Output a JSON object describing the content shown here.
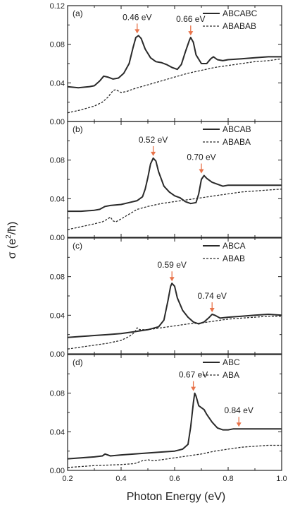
{
  "chart_data": [
    {
      "type": "line",
      "panel_label": "(a)",
      "xlim": [
        0.2,
        1.0
      ],
      "ylim": [
        0.0,
        0.12
      ],
      "yticks": [
        "0.00",
        "0.04",
        "0.08",
        "0.12"
      ],
      "series": [
        {
          "name": "ABCABC",
          "style": "solid",
          "points": [
            [
              0.2,
              0.036
            ],
            [
              0.24,
              0.035
            ],
            [
              0.28,
              0.036
            ],
            [
              0.3,
              0.037
            ],
            [
              0.32,
              0.042
            ],
            [
              0.335,
              0.047
            ],
            [
              0.35,
              0.046
            ],
            [
              0.37,
              0.044
            ],
            [
              0.39,
              0.045
            ],
            [
              0.41,
              0.05
            ],
            [
              0.43,
              0.06
            ],
            [
              0.445,
              0.077
            ],
            [
              0.455,
              0.087
            ],
            [
              0.465,
              0.089
            ],
            [
              0.475,
              0.086
            ],
            [
              0.49,
              0.075
            ],
            [
              0.51,
              0.066
            ],
            [
              0.53,
              0.062
            ],
            [
              0.55,
              0.061
            ],
            [
              0.57,
              0.059
            ],
            [
              0.59,
              0.056
            ],
            [
              0.61,
              0.054
            ],
            [
              0.625,
              0.059
            ],
            [
              0.64,
              0.072
            ],
            [
              0.655,
              0.084
            ],
            [
              0.66,
              0.087
            ],
            [
              0.67,
              0.082
            ],
            [
              0.68,
              0.069
            ],
            [
              0.7,
              0.06
            ],
            [
              0.72,
              0.06
            ],
            [
              0.735,
              0.065
            ],
            [
              0.745,
              0.067
            ],
            [
              0.76,
              0.064
            ],
            [
              0.78,
              0.063
            ],
            [
              0.8,
              0.064
            ],
            [
              0.85,
              0.065
            ],
            [
              0.9,
              0.066
            ],
            [
              0.95,
              0.067
            ],
            [
              1.0,
              0.067
            ]
          ]
        },
        {
          "name": "ABABAB",
          "style": "dashed",
          "points": [
            [
              0.2,
              0.009
            ],
            [
              0.25,
              0.012
            ],
            [
              0.3,
              0.016
            ],
            [
              0.33,
              0.02
            ],
            [
              0.35,
              0.025
            ],
            [
              0.37,
              0.032
            ],
            [
              0.38,
              0.033
            ],
            [
              0.4,
              0.03
            ],
            [
              0.42,
              0.031
            ],
            [
              0.45,
              0.034
            ],
            [
              0.5,
              0.038
            ],
            [
              0.55,
              0.042
            ],
            [
              0.6,
              0.046
            ],
            [
              0.65,
              0.05
            ],
            [
              0.7,
              0.053
            ],
            [
              0.75,
              0.056
            ],
            [
              0.8,
              0.058
            ],
            [
              0.85,
              0.06
            ],
            [
              0.9,
              0.062
            ],
            [
              0.95,
              0.063
            ],
            [
              1.0,
              0.065
            ]
          ]
        }
      ],
      "annotations": [
        {
          "x": 0.46,
          "y": 0.089,
          "label": "0.46 eV"
        },
        {
          "x": 0.66,
          "y": 0.087,
          "label": "0.66 eV"
        }
      ]
    },
    {
      "type": "line",
      "panel_label": "(b)",
      "xlim": [
        0.2,
        1.0
      ],
      "ylim": [
        0.0,
        0.12
      ],
      "yticks": [
        "0.00",
        "0.04",
        "0.08"
      ],
      "series": [
        {
          "name": "ABCAB",
          "style": "solid",
          "points": [
            [
              0.2,
              0.027
            ],
            [
              0.25,
              0.027
            ],
            [
              0.3,
              0.028
            ],
            [
              0.32,
              0.029
            ],
            [
              0.34,
              0.032
            ],
            [
              0.36,
              0.033
            ],
            [
              0.4,
              0.034
            ],
            [
              0.43,
              0.036
            ],
            [
              0.46,
              0.038
            ],
            [
              0.48,
              0.042
            ],
            [
              0.49,
              0.05
            ],
            [
              0.5,
              0.062
            ],
            [
              0.51,
              0.076
            ],
            [
              0.52,
              0.082
            ],
            [
              0.53,
              0.079
            ],
            [
              0.54,
              0.068
            ],
            [
              0.56,
              0.053
            ],
            [
              0.58,
              0.047
            ],
            [
              0.6,
              0.043
            ],
            [
              0.62,
              0.041
            ],
            [
              0.64,
              0.037
            ],
            [
              0.66,
              0.035
            ],
            [
              0.68,
              0.036
            ],
            [
              0.69,
              0.045
            ],
            [
              0.7,
              0.06
            ],
            [
              0.71,
              0.064
            ],
            [
              0.72,
              0.061
            ],
            [
              0.74,
              0.057
            ],
            [
              0.76,
              0.055
            ],
            [
              0.78,
              0.053
            ],
            [
              0.8,
              0.054
            ],
            [
              0.85,
              0.054
            ],
            [
              0.9,
              0.054
            ],
            [
              0.95,
              0.054
            ],
            [
              1.0,
              0.054
            ]
          ]
        },
        {
          "name": "ABABA",
          "style": "dashed",
          "points": [
            [
              0.2,
              0.008
            ],
            [
              0.25,
              0.011
            ],
            [
              0.3,
              0.014
            ],
            [
              0.33,
              0.016
            ],
            [
              0.35,
              0.019
            ],
            [
              0.36,
              0.021
            ],
            [
              0.37,
              0.017
            ],
            [
              0.38,
              0.016
            ],
            [
              0.4,
              0.019
            ],
            [
              0.43,
              0.024
            ],
            [
              0.46,
              0.029
            ],
            [
              0.5,
              0.032
            ],
            [
              0.55,
              0.035
            ],
            [
              0.6,
              0.037
            ],
            [
              0.65,
              0.039
            ],
            [
              0.7,
              0.041
            ],
            [
              0.75,
              0.043
            ],
            [
              0.8,
              0.045
            ],
            [
              0.85,
              0.047
            ],
            [
              0.9,
              0.048
            ],
            [
              0.95,
              0.049
            ],
            [
              1.0,
              0.05
            ]
          ]
        }
      ],
      "annotations": [
        {
          "x": 0.52,
          "y": 0.082,
          "label": "0.52 eV"
        },
        {
          "x": 0.7,
          "y": 0.064,
          "label": "0.70 eV"
        }
      ]
    },
    {
      "type": "line",
      "panel_label": "(c)",
      "xlim": [
        0.2,
        1.0
      ],
      "ylim": [
        0.0,
        0.12
      ],
      "yticks": [
        "0.00",
        "0.04",
        "0.08"
      ],
      "series": [
        {
          "name": "ABCA",
          "style": "solid",
          "points": [
            [
              0.2,
              0.017
            ],
            [
              0.25,
              0.018
            ],
            [
              0.3,
              0.019
            ],
            [
              0.35,
              0.02
            ],
            [
              0.4,
              0.021
            ],
            [
              0.45,
              0.023
            ],
            [
              0.5,
              0.025
            ],
            [
              0.54,
              0.028
            ],
            [
              0.56,
              0.035
            ],
            [
              0.575,
              0.055
            ],
            [
              0.585,
              0.07
            ],
            [
              0.59,
              0.073
            ],
            [
              0.6,
              0.07
            ],
            [
              0.61,
              0.058
            ],
            [
              0.63,
              0.045
            ],
            [
              0.65,
              0.038
            ],
            [
              0.67,
              0.033
            ],
            [
              0.69,
              0.031
            ],
            [
              0.71,
              0.033
            ],
            [
              0.73,
              0.038
            ],
            [
              0.74,
              0.041
            ],
            [
              0.75,
              0.04
            ],
            [
              0.77,
              0.037
            ],
            [
              0.8,
              0.038
            ],
            [
              0.85,
              0.039
            ],
            [
              0.9,
              0.04
            ],
            [
              0.95,
              0.041
            ],
            [
              1.0,
              0.04
            ]
          ]
        },
        {
          "name": "ABAB",
          "style": "dashed",
          "points": [
            [
              0.2,
              0.005
            ],
            [
              0.25,
              0.007
            ],
            [
              0.3,
              0.009
            ],
            [
              0.35,
              0.011
            ],
            [
              0.4,
              0.014
            ],
            [
              0.43,
              0.018
            ],
            [
              0.45,
              0.022
            ],
            [
              0.46,
              0.027
            ],
            [
              0.47,
              0.025
            ],
            [
              0.5,
              0.025
            ],
            [
              0.55,
              0.027
            ],
            [
              0.6,
              0.029
            ],
            [
              0.65,
              0.031
            ],
            [
              0.7,
              0.032
            ],
            [
              0.75,
              0.034
            ],
            [
              0.8,
              0.036
            ],
            [
              0.85,
              0.037
            ],
            [
              0.9,
              0.038
            ],
            [
              0.95,
              0.039
            ],
            [
              1.0,
              0.039
            ]
          ]
        }
      ],
      "annotations": [
        {
          "x": 0.59,
          "y": 0.073,
          "label": "0.59 eV"
        },
        {
          "x": 0.74,
          "y": 0.041,
          "label": "0.74 eV"
        }
      ]
    },
    {
      "type": "line",
      "panel_label": "(d)",
      "xlim": [
        0.2,
        1.0
      ],
      "ylim": [
        0.0,
        0.12
      ],
      "xticks": [
        "0.2",
        "0.4",
        "0.6",
        "0.8",
        "1.0"
      ],
      "yticks": [
        "0.00",
        "0.04",
        "0.08"
      ],
      "series": [
        {
          "name": "ABC",
          "style": "solid",
          "points": [
            [
              0.2,
              0.012
            ],
            [
              0.25,
              0.013
            ],
            [
              0.3,
              0.014
            ],
            [
              0.33,
              0.015
            ],
            [
              0.34,
              0.017
            ],
            [
              0.36,
              0.015
            ],
            [
              0.4,
              0.016
            ],
            [
              0.45,
              0.017
            ],
            [
              0.5,
              0.018
            ],
            [
              0.55,
              0.019
            ],
            [
              0.6,
              0.02
            ],
            [
              0.63,
              0.022
            ],
            [
              0.65,
              0.027
            ],
            [
              0.66,
              0.045
            ],
            [
              0.67,
              0.07
            ],
            [
              0.675,
              0.08
            ],
            [
              0.68,
              0.077
            ],
            [
              0.69,
              0.067
            ],
            [
              0.71,
              0.063
            ],
            [
              0.72,
              0.058
            ],
            [
              0.74,
              0.05
            ],
            [
              0.76,
              0.044
            ],
            [
              0.78,
              0.042
            ],
            [
              0.8,
              0.042
            ],
            [
              0.82,
              0.043
            ],
            [
              0.84,
              0.043
            ],
            [
              0.9,
              0.043
            ],
            [
              0.95,
              0.043
            ],
            [
              1.0,
              0.043
            ]
          ]
        },
        {
          "name": "ABA",
          "style": "dashed",
          "points": [
            [
              0.2,
              0.003
            ],
            [
              0.3,
              0.005
            ],
            [
              0.4,
              0.006
            ],
            [
              0.45,
              0.007
            ],
            [
              0.48,
              0.01
            ],
            [
              0.5,
              0.011
            ],
            [
              0.52,
              0.01
            ],
            [
              0.55,
              0.011
            ],
            [
              0.6,
              0.013
            ],
            [
              0.65,
              0.015
            ],
            [
              0.7,
              0.017
            ],
            [
              0.75,
              0.02
            ],
            [
              0.8,
              0.022
            ],
            [
              0.85,
              0.024
            ],
            [
              0.9,
              0.025
            ],
            [
              0.95,
              0.026
            ],
            [
              1.0,
              0.026
            ]
          ]
        }
      ],
      "annotations": [
        {
          "x": 0.67,
          "y": 0.08,
          "label": "0.67 eV"
        },
        {
          "x": 0.84,
          "y": 0.043,
          "label": "0.84 eV"
        }
      ]
    }
  ],
  "axes": {
    "xlabel": "Photon Energy (eV)",
    "ylabel_prefix": "σ (e",
    "ylabel_sup": "2",
    "ylabel_suffix": "/ħ)"
  },
  "colors": {
    "line": "#2a2a2a",
    "arrow": "#e8734a",
    "axis": "#222222"
  }
}
